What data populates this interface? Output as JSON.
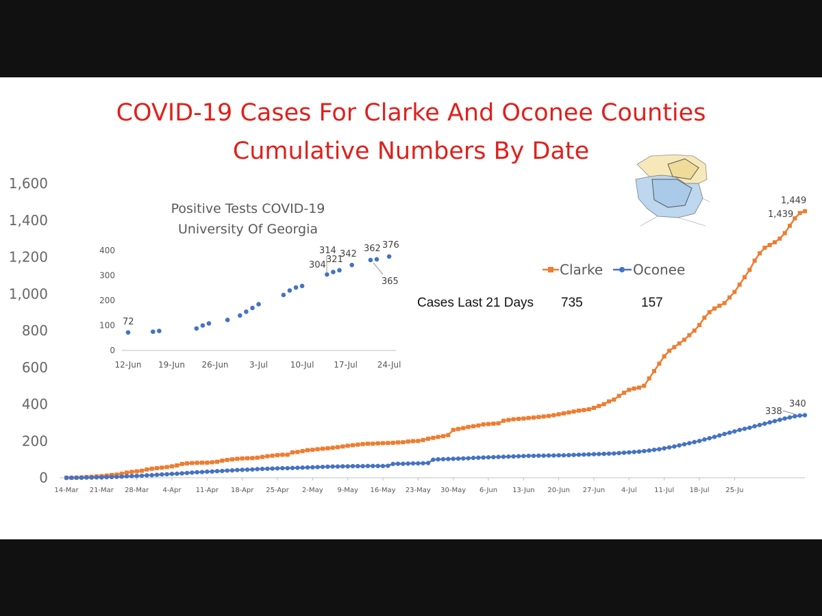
{
  "title_line1": "COVID-19 Cases For Clarke And Oconee Counties",
  "title_line2": "Cumulative Numbers By Date",
  "stats": {
    "label": "Cases Last 21 Days",
    "clarke": "735",
    "oconee": "157"
  },
  "colors": {
    "clarke": "#ed7d31",
    "oconee": "#4472c4",
    "title": "#e0201b",
    "background": "#ffffff",
    "frame": "#111111"
  },
  "map": {
    "description_icon": "county-map-icon"
  },
  "chart_data": [
    {
      "type": "line",
      "title": "COVID-19 Cases For Clarke And Oconee Counties Cumulative Numbers By Date",
      "xlabel": "",
      "ylabel": "",
      "ylim": [
        0,
        1600
      ],
      "yticks": [
        "0",
        "200",
        "400",
        "600",
        "800",
        "1,000",
        "1,200",
        "1,400",
        "1,600"
      ],
      "xtick_labels": [
        "14-Mar",
        "21-Mar",
        "28-Mar",
        "4-Apr",
        "11-Apr",
        "18-Apr",
        "25-Apr",
        "2-May",
        "9-May",
        "16-May",
        "23-May",
        "30-May",
        "6-Jun",
        "13-Jun",
        "20-Jun",
        "27-Jun",
        "4-Jul",
        "11-Jul",
        "18-Jul",
        "25-Ju"
      ],
      "x_start": "14-Mar",
      "x_end": "26-Jul",
      "legend": "right",
      "grid": false,
      "series": [
        {
          "name": "Clarke",
          "color": "#ed7d31",
          "marker": "square",
          "values": [
            0,
            0,
            1,
            2,
            4,
            5,
            7,
            9,
            12,
            15,
            17,
            22,
            28,
            32,
            35,
            38,
            45,
            49,
            52,
            55,
            58,
            62,
            67,
            75,
            78,
            80,
            81,
            82,
            82,
            84,
            87,
            93,
            97,
            100,
            103,
            105,
            106,
            107,
            109,
            113,
            117,
            120,
            123,
            125,
            125,
            138,
            140,
            145,
            150,
            152,
            155,
            158,
            160,
            163,
            166,
            170,
            174,
            177,
            180,
            183,
            185,
            185,
            187,
            188,
            189,
            190,
            192,
            193,
            197,
            199,
            200,
            205,
            212,
            217,
            222,
            226,
            232,
            260,
            265,
            270,
            276,
            280,
            284,
            290,
            292,
            294,
            296,
            310,
            314,
            318,
            320,
            322,
            325,
            327,
            330,
            333,
            336,
            340,
            345,
            350,
            355,
            360,
            365,
            368,
            372,
            380,
            390,
            400,
            415,
            425,
            445,
            462,
            478,
            485,
            490,
            500,
            540,
            580,
            620,
            660,
            690,
            710,
            730,
            750,
            775,
            800,
            830,
            870,
            900,
            920,
            935,
            950,
            980,
            1010,
            1050,
            1090,
            1130,
            1180,
            1220,
            1250,
            1265,
            1280,
            1300,
            1330,
            1370,
            1410,
            1439,
            1449
          ]
        },
        {
          "name": "Oconee",
          "color": "#4472c4",
          "marker": "circle",
          "values": [
            0,
            0,
            0,
            0,
            1,
            1,
            2,
            2,
            3,
            4,
            5,
            6,
            8,
            9,
            10,
            11,
            13,
            14,
            16,
            18,
            19,
            21,
            22,
            24,
            26,
            28,
            30,
            31,
            33,
            34,
            36,
            37,
            39,
            40,
            42,
            43,
            44,
            45,
            47,
            48,
            49,
            50,
            51,
            52,
            52,
            53,
            54,
            55,
            56,
            57,
            58,
            59,
            60,
            61,
            61,
            62,
            62,
            63,
            63,
            63,
            64,
            64,
            64,
            64,
            65,
            75,
            76,
            76,
            77,
            78,
            78,
            79,
            80,
            98,
            100,
            101,
            102,
            103,
            104,
            105,
            106,
            108,
            109,
            110,
            111,
            112,
            113,
            114,
            115,
            116,
            117,
            118,
            119,
            119,
            120,
            120,
            121,
            121,
            122,
            122,
            123,
            124,
            125,
            126,
            127,
            128,
            129,
            130,
            131,
            132,
            134,
            136,
            138,
            140,
            142,
            145,
            148,
            152,
            155,
            160,
            165,
            170,
            176,
            182,
            188,
            194,
            200,
            208,
            215,
            222,
            230,
            238,
            245,
            252,
            260,
            266,
            272,
            280,
            287,
            294,
            301,
            308,
            315,
            322,
            328,
            334,
            338,
            340
          ]
        }
      ],
      "data_labels": {
        "clarke": [
          "1,439",
          "1,449"
        ],
        "oconee": [
          "338",
          "340"
        ]
      }
    },
    {
      "type": "scatter",
      "title": "Positive Tests COVID-19 University Of Georgia",
      "title_line1": "Positive Tests COVID-19",
      "title_line2": "University Of Georgia",
      "xlabel": "",
      "ylabel": "",
      "ylim": [
        0,
        400
      ],
      "yticks": [
        "0",
        "100",
        "200",
        "300",
        "400"
      ],
      "xtick_labels": [
        "12-Jun",
        "19-Jun",
        "26-Jun",
        "3-Jul",
        "10-Jul",
        "17-Jul",
        "24-Jul"
      ],
      "color": "#4472c4",
      "points": [
        {
          "x": "12-Jun",
          "y": 72
        },
        {
          "x": "16-Jun",
          "y": 75
        },
        {
          "x": "17-Jun",
          "y": 78
        },
        {
          "x": "23-Jun",
          "y": 88
        },
        {
          "x": "24-Jun",
          "y": 100
        },
        {
          "x": "25-Jun",
          "y": 108
        },
        {
          "x": "28-Jun",
          "y": 122
        },
        {
          "x": "30-Jun",
          "y": 140
        },
        {
          "x": "1-Jul",
          "y": 155
        },
        {
          "x": "2-Jul",
          "y": 170
        },
        {
          "x": "3-Jul",
          "y": 185
        },
        {
          "x": "7-Jul",
          "y": 222
        },
        {
          "x": "8-Jul",
          "y": 240
        },
        {
          "x": "9-Jul",
          "y": 252
        },
        {
          "x": "10-Jul",
          "y": 258
        },
        {
          "x": "14-Jul",
          "y": 304
        },
        {
          "x": "15-Jul",
          "y": 314
        },
        {
          "x": "16-Jul",
          "y": 321
        },
        {
          "x": "18-Jul",
          "y": 342
        },
        {
          "x": "21-Jul",
          "y": 362
        },
        {
          "x": "22-Jul",
          "y": 365
        },
        {
          "x": "24-Jul",
          "y": 376
        }
      ],
      "labeled_values": [
        "72",
        "304",
        "314",
        "321",
        "342",
        "362",
        "376",
        "365"
      ]
    }
  ]
}
